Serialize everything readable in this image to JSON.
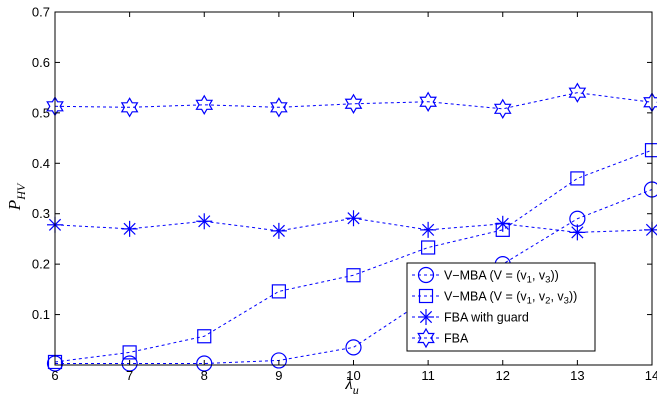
{
  "chart_data": {
    "type": "line",
    "title": "",
    "xlabel": "λu",
    "xlabel_main": "λ",
    "xlabel_sub": "u",
    "ylabel": "PHV",
    "ylabel_main": "P",
    "ylabel_sub": "HV",
    "xlim": [
      6,
      14
    ],
    "ylim": [
      0,
      0.7
    ],
    "x_ticks": [
      "6",
      "7",
      "8",
      "9",
      "10",
      "11",
      "12",
      "13",
      "14"
    ],
    "y_ticks": [
      "0.1",
      "0.2",
      "0.3",
      "0.4",
      "0.5",
      "0.6",
      "0.7"
    ],
    "x": [
      6,
      7,
      8,
      9,
      10,
      11,
      12,
      13,
      14
    ],
    "grid": false,
    "legend_position": "bottom-right",
    "color": "#0000ff",
    "series": [
      {
        "legend_parts": [
          "V−MBA (V = (v",
          "1",
          ", v",
          "3",
          "))"
        ],
        "marker": "circle",
        "values": [
          0.003,
          0.003,
          0.003,
          0.009,
          0.035,
          0.133,
          0.2,
          0.29,
          0.348
        ]
      },
      {
        "legend_parts": [
          "V−MBA (V = (v",
          "1",
          ", v",
          "2",
          ", v",
          "3",
          "))"
        ],
        "marker": "square",
        "values": [
          0.006,
          0.025,
          0.057,
          0.146,
          0.178,
          0.233,
          0.268,
          0.37,
          0.426
        ]
      },
      {
        "legend_parts": [
          "FBA with guard"
        ],
        "marker": "asterisk",
        "values": [
          0.278,
          0.27,
          0.285,
          0.266,
          0.291,
          0.268,
          0.28,
          0.263,
          0.268
        ]
      },
      {
        "legend_parts": [
          "FBA"
        ],
        "marker": "hexagram",
        "values": [
          0.513,
          0.511,
          0.516,
          0.511,
          0.518,
          0.522,
          0.508,
          0.54,
          0.521
        ]
      }
    ]
  }
}
